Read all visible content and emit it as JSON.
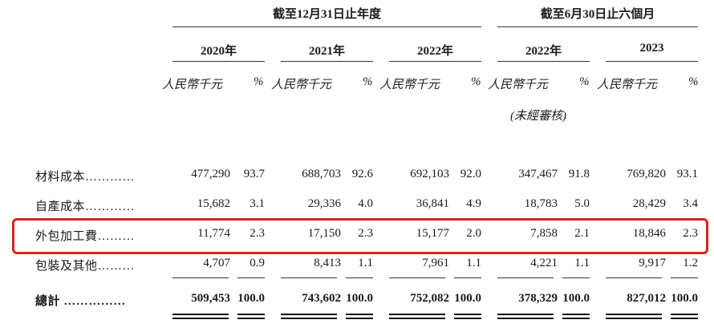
{
  "header": {
    "period1": "截至12月31日止年度",
    "period2": "截至6月30日止六個月",
    "years": [
      "2020年",
      "2021年",
      "2022年",
      "2022年",
      "2023"
    ],
    "unit_rmb": "人民幣千元",
    "unit_pct": "%",
    "unaudited": "(未經審核)"
  },
  "rows": [
    {
      "label": "材料成本",
      "dots": "…………",
      "values": [
        "477,290",
        "93.7",
        "688,703",
        "92.6",
        "692,103",
        "92.0",
        "347,467",
        "91.8",
        "769,820",
        "93.1"
      ]
    },
    {
      "label": "自產成本",
      "dots": "…………",
      "values": [
        "15,682",
        "3.1",
        "29,336",
        "4.0",
        "36,841",
        "4.9",
        "18,783",
        "5.0",
        "28,429",
        "3.4"
      ]
    },
    {
      "label": "外包加工費",
      "dots": "………",
      "values": [
        "11,774",
        "2.3",
        "17,150",
        "2.3",
        "15,177",
        "2.0",
        "7,858",
        "2.1",
        "18,846",
        "2.3"
      ]
    },
    {
      "label": "包裝及其他",
      "dots": "………",
      "values": [
        "4,707",
        "0.9",
        "8,413",
        "1.1",
        "7,961",
        "1.1",
        "4,221",
        "1.1",
        "9,917",
        "1.2"
      ]
    }
  ],
  "total": {
    "label": "總計",
    "dots": "……………",
    "values": [
      "509,453",
      "100.0",
      "743,602",
      "100.0",
      "752,082",
      "100.0",
      "378,329",
      "100.0",
      "827,012",
      "100.0"
    ]
  },
  "highlight_color": "#e02020"
}
